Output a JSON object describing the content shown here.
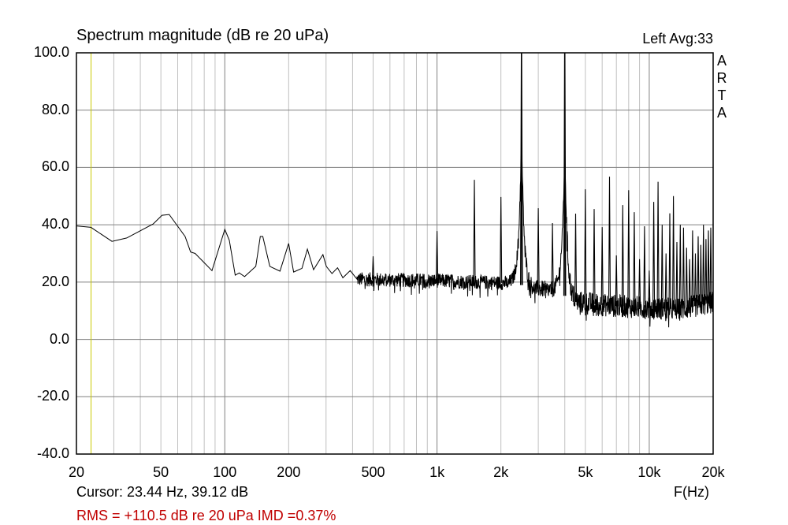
{
  "chart_data": {
    "type": "line",
    "title": "Spectrum magnitude (dB re 20 uPa)",
    "channel_label": "Left  Avg:33",
    "brand": [
      "A",
      "R",
      "T",
      "A"
    ],
    "xlabel": "F(Hz)",
    "xscale": "log",
    "xlim": [
      20,
      20000
    ],
    "ylim": [
      -40,
      100
    ],
    "grid": true,
    "x_ticks": [
      {
        "value": 20,
        "label": "20"
      },
      {
        "value": 50,
        "label": "50"
      },
      {
        "value": 100,
        "label": "100"
      },
      {
        "value": 200,
        "label": "200"
      },
      {
        "value": 500,
        "label": "500"
      },
      {
        "value": 1000,
        "label": "1k"
      },
      {
        "value": 2000,
        "label": "2k"
      },
      {
        "value": 5000,
        "label": "5k"
      },
      {
        "value": 10000,
        "label": "10k"
      },
      {
        "value": 20000,
        "label": "20k"
      }
    ],
    "y_ticks": [
      {
        "value": 100,
        "label": "100.0"
      },
      {
        "value": 80,
        "label": "80.0"
      },
      {
        "value": 60,
        "label": "60.0"
      },
      {
        "value": 40,
        "label": "40.0"
      },
      {
        "value": 20,
        "label": "20.0"
      },
      {
        "value": 0,
        "label": "0.0"
      },
      {
        "value": -20,
        "label": "-20.0"
      },
      {
        "value": -40,
        "label": "-40.0"
      }
    ],
    "low_freq_curve": [
      [
        20,
        39.6
      ],
      [
        23.4,
        39.1
      ],
      [
        29.4,
        34.2
      ],
      [
        34.5,
        35.4
      ],
      [
        46,
        40.3
      ],
      [
        50.6,
        43.3
      ],
      [
        54.7,
        43.6
      ],
      [
        65,
        35.9
      ],
      [
        69,
        30.5
      ],
      [
        72.5,
        30
      ],
      [
        87,
        24
      ],
      [
        100,
        38.4
      ],
      [
        105,
        34.6
      ],
      [
        112,
        22.4
      ],
      [
        117,
        23.2
      ],
      [
        124,
        21.9
      ],
      [
        140,
        25.5
      ],
      [
        147,
        35.9
      ],
      [
        151,
        35.9
      ],
      [
        163,
        25.5
      ],
      [
        182,
        23.8
      ],
      [
        200,
        33.5
      ],
      [
        211,
        23.5
      ],
      [
        231,
        24.8
      ],
      [
        245,
        31.5
      ],
      [
        262,
        24.3
      ],
      [
        290,
        29.6
      ],
      [
        301,
        25.5
      ],
      [
        320,
        23
      ],
      [
        340,
        25
      ],
      [
        360,
        21.5
      ],
      [
        390,
        24
      ],
      [
        420,
        21
      ]
    ],
    "noise_floor": [
      [
        420,
        21
      ],
      [
        1000,
        20.5
      ],
      [
        2400,
        19.5
      ],
      [
        2700,
        18
      ],
      [
        3900,
        17
      ],
      [
        4100,
        13.5
      ],
      [
        6000,
        12
      ],
      [
        10000,
        11
      ],
      [
        14000,
        10.5
      ],
      [
        20000,
        13
      ]
    ],
    "peaks": [
      [
        500,
        29
      ],
      [
        1000,
        37.8
      ],
      [
        1500,
        55.7
      ],
      [
        2000,
        49.7
      ],
      [
        2500,
        100
      ],
      [
        3000,
        45.8
      ],
      [
        3500,
        40.6
      ],
      [
        4000,
        100
      ],
      [
        4500,
        43.9
      ],
      [
        5000,
        52.4
      ],
      [
        5500,
        45.5
      ],
      [
        6000,
        39.2
      ],
      [
        6500,
        56.8
      ],
      [
        7000,
        29.3
      ],
      [
        7500,
        46.9
      ],
      [
        8000,
        52.1
      ],
      [
        8500,
        44.4
      ],
      [
        9000,
        28
      ],
      [
        9500,
        39.5
      ],
      [
        10000,
        24
      ],
      [
        10500,
        48
      ],
      [
        11000,
        55
      ],
      [
        11500,
        40
      ],
      [
        12000,
        30
      ],
      [
        12500,
        44
      ],
      [
        13000,
        50
      ],
      [
        13500,
        34
      ],
      [
        14000,
        40
      ],
      [
        14500,
        39
      ],
      [
        15000,
        32
      ],
      [
        15500,
        28
      ],
      [
        16000,
        38
      ],
      [
        16500,
        30
      ],
      [
        17000,
        36
      ],
      [
        17500,
        33
      ],
      [
        18000,
        40
      ],
      [
        18500,
        35
      ],
      [
        19000,
        38
      ],
      [
        19500,
        39
      ]
    ],
    "cursor": {
      "freq": 23.44,
      "level": 39.12
    },
    "colors": {
      "line": "#000000",
      "grid_major": "#808080",
      "grid_minor": "#c0c0c0",
      "cursor": "#c8c800",
      "stats": "#c00000"
    }
  },
  "footer": {
    "cursor_text": "Cursor: 23.44 Hz, 39.12 dB",
    "stats_text": "RMS = +110.5 dB re 20 uPa  IMD =0.37%"
  }
}
